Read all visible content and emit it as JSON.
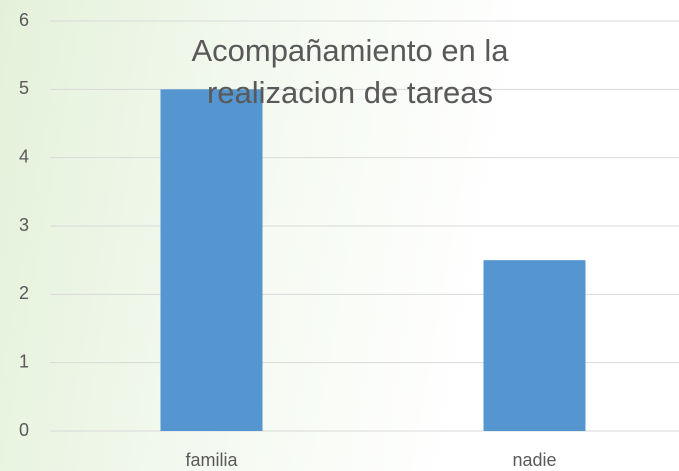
{
  "chart_data": {
    "type": "bar",
    "title": "Acompañamiento en la realizacion de tareas",
    "categories": [
      "familia",
      "nadie"
    ],
    "values": [
      5,
      2.5
    ],
    "color": "#5596d0",
    "ylim": [
      0,
      6
    ],
    "yticks": [
      0,
      1,
      2,
      3,
      4,
      5,
      6
    ],
    "grid": true
  }
}
